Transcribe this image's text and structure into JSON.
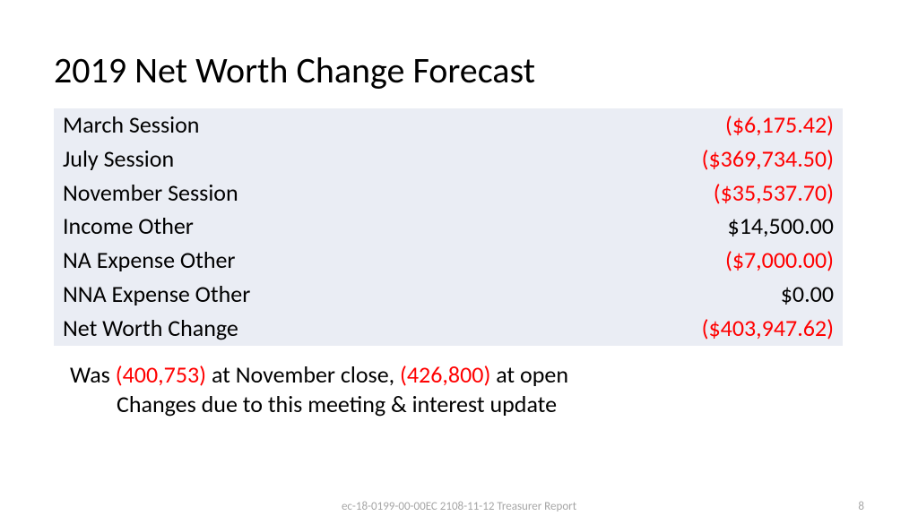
{
  "title": "2019 Net Worth Change Forecast",
  "table": {
    "row_bg_odd": "#eaedf4",
    "row_bg_even": "#eaedf4",
    "label_col_width": 540,
    "value_col_width": 340,
    "rows": [
      {
        "label": "March Session",
        "value": "($6,175.42)",
        "negative": true
      },
      {
        "label": "July Session",
        "value": "($369,734.50)",
        "negative": true
      },
      {
        "label": "November Session",
        "value": "($35,537.70)",
        "negative": true
      },
      {
        "label": "Income Other",
        "value": "$14,500.00",
        "negative": false
      },
      {
        "label": "NA Expense Other",
        "value": "($7,000.00)",
        "negative": true
      },
      {
        "label": "NNA Expense Other",
        "value": "$0.00",
        "negative": false
      },
      {
        "label": "Net Worth Change",
        "value": "($403,947.62)",
        "negative": true
      }
    ]
  },
  "notes": {
    "line1_prefix": "Was ",
    "line1_val1": "(400,753)",
    "line1_mid": " at November close, ",
    "line1_val2": "(426,800)",
    "line1_suffix": " at open",
    "line2": "Changes due to this meeting & interest update"
  },
  "footer": {
    "center": "ec-18-0199-00-00EC 2108-11-12 Treasurer Report",
    "page": "8"
  },
  "colors": {
    "negative": "#ff0000",
    "text": "#000000",
    "footer": "#a6a6a6",
    "row_bg": "#eaedf4"
  }
}
